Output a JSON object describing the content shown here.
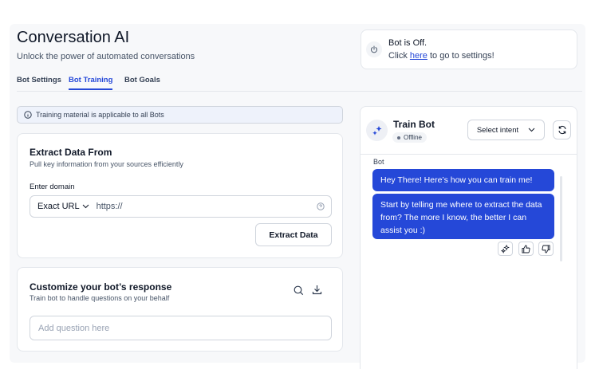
{
  "header": {
    "title": "Conversation AI",
    "subtitle": "Unlock the power of automated conversations"
  },
  "tabs": [
    {
      "label": "Bot Settings"
    },
    {
      "label": "Bot Training",
      "active": true
    },
    {
      "label": "Bot Goals"
    }
  ],
  "bot_status": {
    "line1": "Bot is Off.",
    "click": "Click",
    "link": "here",
    "rest": "to go to settings!",
    "icon": "power-icon"
  },
  "banner": {
    "text": "Training material is applicable to all Bots",
    "icon": "info-icon"
  },
  "extract": {
    "title": "Extract Data From",
    "subtitle": "Pull key information from your sources efficiently",
    "label": "Enter domain",
    "mode": "Exact URL",
    "placeholder": "https://",
    "button": "Extract Data"
  },
  "customize": {
    "title": "Customize your bot’s response",
    "subtitle": "Train bot to handle questions on your behalf",
    "placeholder": "Add question here"
  },
  "train_bot": {
    "title": "Train Bot",
    "status": "Offline",
    "select": "Select intent",
    "sender": "Bot",
    "messages": [
      "Hey There! Here’s how you can train me!",
      "Start by telling me where to extract the data from? The more I know, the better I can assist you :)"
    ]
  },
  "colors": {
    "accent": "#2548d8",
    "panel_bg": "#f7f8fa"
  }
}
